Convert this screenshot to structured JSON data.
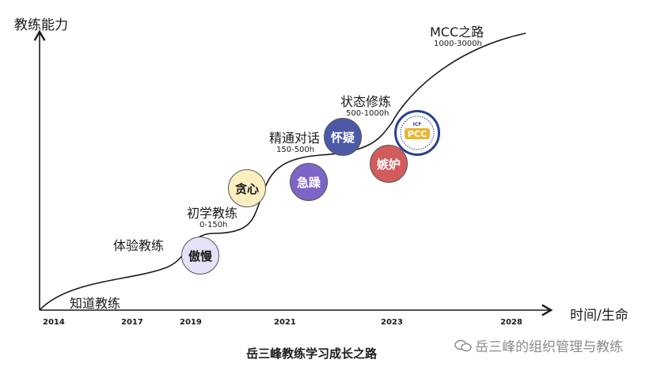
{
  "axes": {
    "y_title": "教练能力",
    "x_title": "时间/生命",
    "years": [
      "2014",
      "2017",
      "2019",
      "2021",
      "2023",
      "2028"
    ]
  },
  "stages": [
    {
      "name": "知道教练",
      "hours": ""
    },
    {
      "name": "体验教练",
      "hours": ""
    },
    {
      "name": "初学教练",
      "hours": "0-150h"
    },
    {
      "name": "精通对话",
      "hours": "150-500h"
    },
    {
      "name": "状态修炼",
      "hours": "500-1000h"
    },
    {
      "name": "MCC之路",
      "hours": "1000-3000h"
    }
  ],
  "bubbles": [
    {
      "label": "傲慢",
      "color": "#e7e0f6"
    },
    {
      "label": "贪心",
      "color": "#fbefc2"
    },
    {
      "label": "急躁",
      "color": "#7d65c7"
    },
    {
      "label": "怀疑",
      "color": "#4c5aa6"
    },
    {
      "label": "嫉妒",
      "color": "#d25c5c"
    }
  ],
  "badge": {
    "text": "PCC",
    "top_text": "ICF"
  },
  "caption": "岳三峰教练学习成长之路",
  "watermark": "岳三峰的组织管理与教练"
}
